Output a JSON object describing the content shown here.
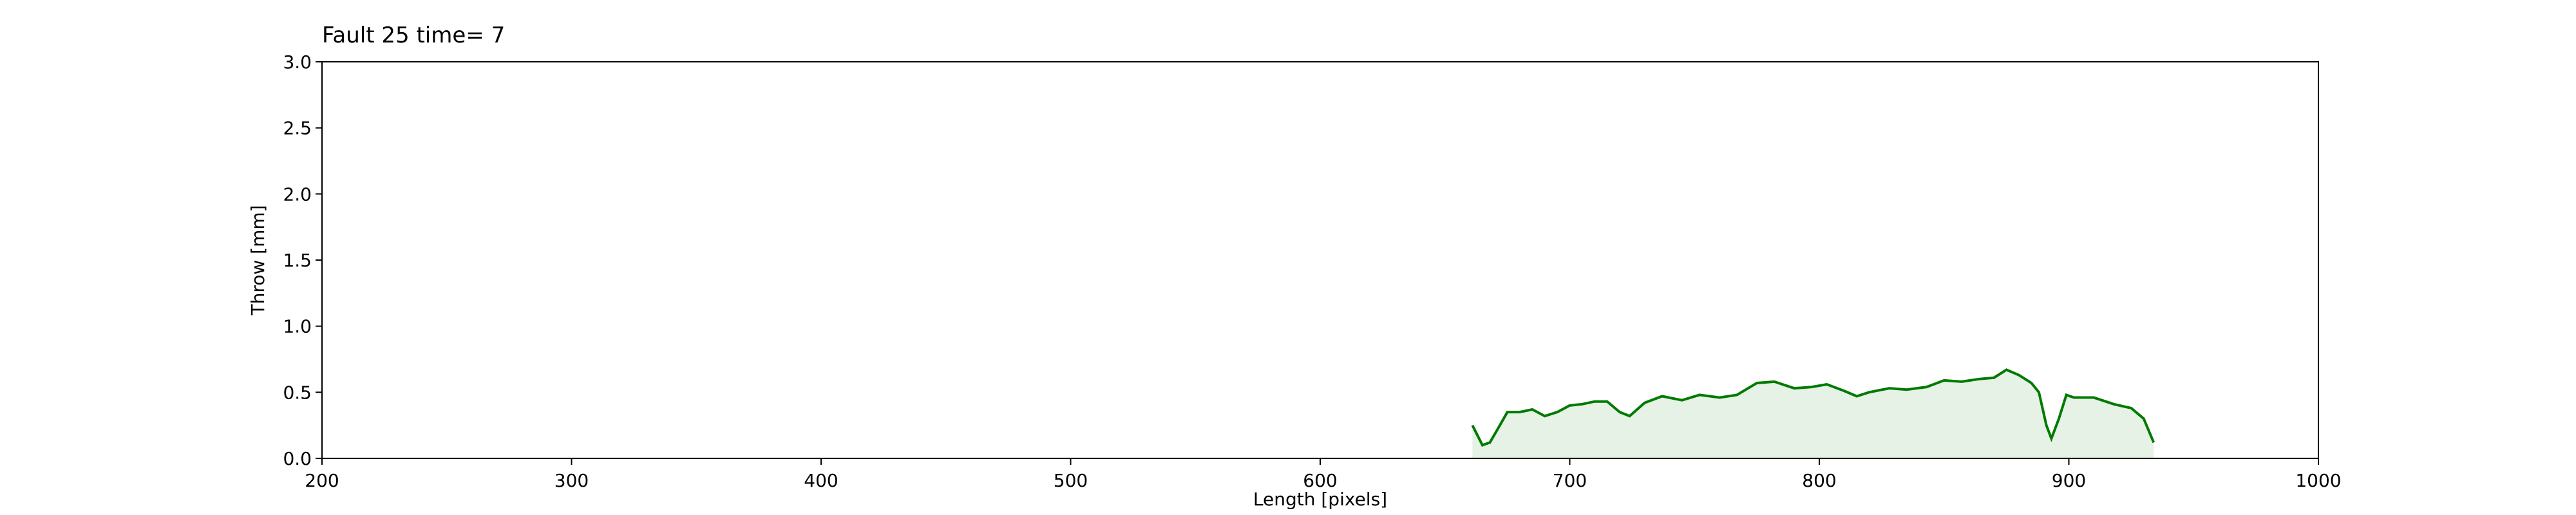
{
  "chart_data": {
    "type": "line",
    "title": "Fault 25 time= 7",
    "xlabel": "Length [pixels]",
    "ylabel": "Throw [mm]",
    "x": [
      661,
      665,
      668,
      672,
      675,
      680,
      685,
      690,
      695,
      700,
      705,
      710,
      715,
      720,
      724,
      730,
      737,
      745,
      752,
      760,
      767,
      775,
      782,
      790,
      797,
      803,
      810,
      815,
      820,
      828,
      835,
      843,
      850,
      857,
      864,
      870,
      875,
      880,
      885,
      888,
      891,
      893,
      896,
      899,
      902,
      910,
      918,
      925,
      930,
      934
    ],
    "values": [
      0.25,
      0.1,
      0.12,
      0.25,
      0.35,
      0.35,
      0.37,
      0.32,
      0.35,
      0.4,
      0.41,
      0.43,
      0.43,
      0.35,
      0.32,
      0.42,
      0.47,
      0.44,
      0.48,
      0.46,
      0.48,
      0.57,
      0.58,
      0.53,
      0.54,
      0.56,
      0.51,
      0.47,
      0.5,
      0.53,
      0.52,
      0.54,
      0.59,
      0.58,
      0.6,
      0.61,
      0.67,
      0.63,
      0.57,
      0.5,
      0.25,
      0.15,
      0.3,
      0.48,
      0.46,
      0.46,
      0.41,
      0.38,
      0.3,
      0.12
    ],
    "color": "#007a00",
    "fill_color": "#e5f2e5",
    "xlim": [
      200,
      1000
    ],
    "xticks": [
      200,
      300,
      400,
      500,
      600,
      700,
      800,
      900,
      1000
    ],
    "ylim": [
      0,
      3
    ],
    "yticks": [
      {
        "value": 0,
        "label": "0.0"
      },
      {
        "value": 0.5,
        "label": "0.5"
      },
      {
        "value": 1,
        "label": "1.0"
      },
      {
        "value": 1.5,
        "label": "1.5"
      },
      {
        "value": 2,
        "label": "2.0"
      },
      {
        "value": 2.5,
        "label": "2.5"
      },
      {
        "value": 3,
        "label": "3.0"
      }
    ]
  }
}
